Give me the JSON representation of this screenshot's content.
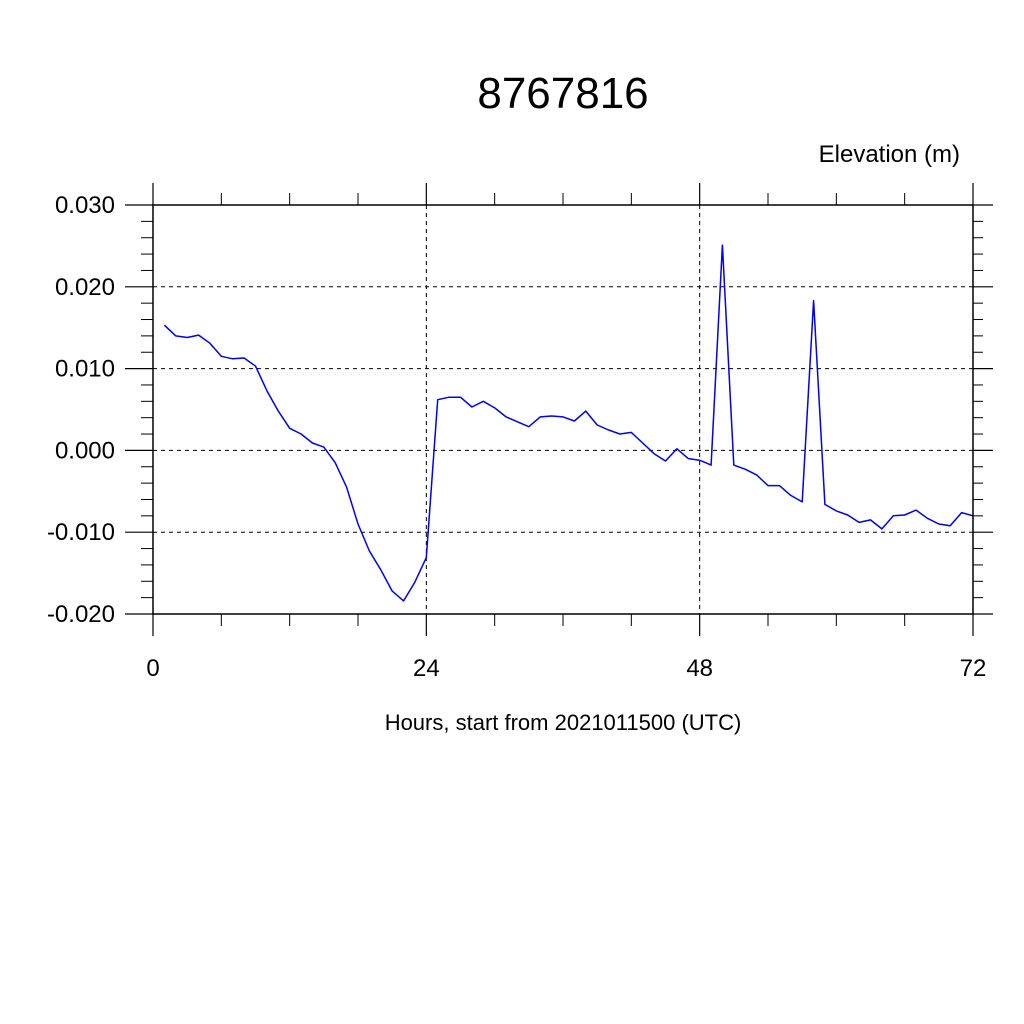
{
  "chart_data": {
    "type": "line",
    "title": "8767816",
    "ylabel": "Elevation (m)",
    "xlabel": "Hours, start from 2021011500 (UTC)",
    "xlim": [
      0,
      72
    ],
    "ylim": [
      -0.02,
      0.03
    ],
    "x_ticks": [
      0,
      24,
      48,
      72
    ],
    "x_tick_labels": [
      "0",
      "24",
      "48",
      "72"
    ],
    "y_ticks": [
      -0.02,
      -0.01,
      0.0,
      0.01,
      0.02,
      0.03
    ],
    "y_tick_labels": [
      "-0.020",
      "-0.010",
      "0.000",
      "0.010",
      "0.020",
      "0.030"
    ],
    "grid": true,
    "grid_style": "dashed",
    "series": [
      {
        "color": "#0000ee",
        "x": [
          1,
          2,
          3,
          4,
          5,
          6,
          7,
          8,
          9,
          10,
          11,
          12,
          13,
          14,
          15,
          16,
          17,
          18,
          19,
          20,
          21,
          22,
          23,
          24,
          25,
          26,
          27,
          28,
          29,
          30,
          31,
          32,
          33,
          34,
          35,
          36,
          37,
          38,
          39,
          40,
          41,
          42,
          43,
          44,
          45,
          46,
          47,
          48,
          49,
          50,
          51,
          52,
          53,
          54,
          55,
          56,
          57,
          58,
          59,
          60,
          61,
          62,
          63,
          64,
          65,
          66,
          67,
          68,
          69,
          70,
          71,
          72
        ],
        "y": [
          0.0153,
          0.014,
          0.0138,
          0.0141,
          0.0131,
          0.0115,
          0.0112,
          0.0113,
          0.0103,
          0.0073,
          0.0048,
          0.0027,
          0.002,
          0.0009,
          0.0004,
          -0.0015,
          -0.0045,
          -0.009,
          -0.0123,
          -0.0146,
          -0.0172,
          -0.0184,
          -0.0161,
          -0.0131,
          0.0062,
          0.0065,
          0.0065,
          0.0053,
          0.006,
          0.0052,
          0.0041,
          0.0035,
          0.0029,
          0.0041,
          0.0042,
          0.0041,
          0.0036,
          0.0048,
          0.0031,
          0.0025,
          0.002,
          0.0022,
          0.0009,
          -0.0004,
          -0.0013,
          0.0002,
          -0.001,
          -0.0012,
          -0.0018,
          0.0251,
          -0.0018,
          -0.0023,
          -0.003,
          -0.0043,
          -0.0043,
          -0.0055,
          -0.0063,
          0.0183,
          -0.0066,
          -0.0074,
          -0.0079,
          -0.0088,
          -0.0085,
          -0.0096,
          -0.008,
          -0.0079,
          -0.0073,
          -0.0083,
          -0.009,
          -0.0092,
          -0.0076,
          -0.008
        ]
      }
    ]
  }
}
